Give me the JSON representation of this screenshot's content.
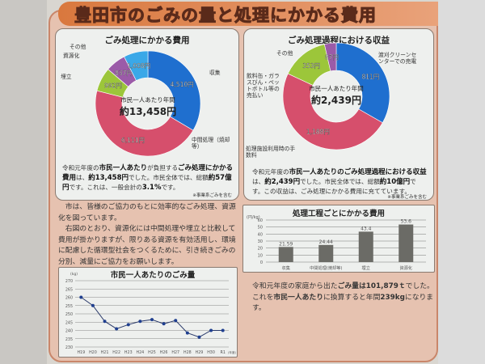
{
  "title": "豊田市のごみの量と処理にかかる費用",
  "cost_pie": {
    "title": "ごみ処理にかかる費用",
    "center_label": "市民一人あたり年間",
    "center_value": "約13,458円",
    "slices": [
      {
        "label": "収集",
        "value": 4510,
        "text": "4,510円",
        "color": "#1f6fcf"
      },
      {
        "label": "中間処理（焼却等）",
        "value": 6111,
        "text": "6,111円",
        "color": "#d64f6c"
      },
      {
        "label": "埋立",
        "value": 992,
        "text": "992円",
        "color": "#9cc63a"
      },
      {
        "label": "資源化",
        "value": 837,
        "text": "837円",
        "color": "#9b5ba8"
      },
      {
        "label": "その他",
        "value": 1008,
        "text": "1,008円",
        "color": "#3aa8e8"
      }
    ],
    "note": [
      "令和元年度の",
      "市民一人あたり",
      "が負担する",
      "ごみ処理にかかる費用",
      "は、",
      "約13,458円",
      "でした。市民全体では、総額",
      "約57億円",
      "です。これは、一般会計の",
      "3.1%",
      "です。"
    ],
    "footnote": "※事業系ごみを含む"
  },
  "revenue_pie": {
    "title": "ごみ処理過程における収益",
    "center_label": "市民一人あたり年間",
    "center_value": "約2,439円",
    "slices": [
      {
        "label": "渡刈クリーンセンターでの売電",
        "value": 811,
        "text": "811円",
        "color": "#1f6fcf"
      },
      {
        "label": "処理施設利用時の手数料",
        "value": 1188,
        "text": "1,188円",
        "color": "#d64f6c"
      },
      {
        "label": "飲料缶・ガラスびん・ペットボトル等の売払い",
        "value": 353,
        "text": "353円",
        "color": "#9cc63a"
      },
      {
        "label": "その他",
        "value": 87,
        "text": "87円",
        "color": "#9b5ba8"
      }
    ],
    "note": [
      "令和元年度の",
      "市民一人あたりのごみ処理過程における収益",
      "は、",
      "約2,439円",
      "でした。市民全体では、総額",
      "約10億円",
      "です。この収益は、ごみ処理にかかる費用に充てています。"
    ],
    "footnote": "※事業系ごみを含む"
  },
  "body_text": [
    "　市は、皆様のご協力のもとに効率的なごみ処理、資源化を図っています。",
    "　右図のとおり、資源化には中間処理や埋立と比較して費用が掛かりますが、限りある資源を有効活用し、環境に配慮した循環型社会をつくるために、引き続きごみの分別、減量にご協力をお願いします。"
  ],
  "amount_text": [
    "令和元年度の家庭から出た",
    "ごみ量は101,879ｔ",
    "でした。これを",
    "市民一人あたり",
    "に換算すると年間",
    "239kg",
    "になります。"
  ],
  "chart_data": [
    {
      "type": "pie",
      "title": "ごみ処理にかかる費用",
      "categories": [
        "収集",
        "中間処理（焼却等）",
        "埋立",
        "資源化",
        "その他"
      ],
      "values": [
        4510,
        6111,
        992,
        837,
        1008
      ],
      "unit": "円"
    },
    {
      "type": "pie",
      "title": "ごみ処理過程における収益",
      "categories": [
        "渡刈クリーンセンターでの売電",
        "処理施設利用時の手数料",
        "飲料缶・ガラスびん・ペットボトル等の売払い",
        "その他"
      ],
      "values": [
        811,
        1188,
        353,
        87
      ],
      "unit": "円"
    },
    {
      "type": "bar",
      "title": "処理工程ごとにかかる費用",
      "ylabel": "(円/kg)",
      "categories": [
        "収集",
        "中間処理(焼却等)",
        "埋立",
        "資源化"
      ],
      "values": [
        21.59,
        24.44,
        43.4,
        53.6
      ],
      "value_labels": [
        "21.59",
        "24.44",
        "43.4",
        "53.6"
      ],
      "ylim": [
        0,
        60
      ],
      "yticks": [
        0,
        10,
        20,
        30,
        40,
        50,
        60
      ],
      "grid": true,
      "color": "#6b6b66"
    },
    {
      "type": "line",
      "title": "市民一人あたりのごみ量",
      "ylabel": "(kg)",
      "xlabel": "(年度)",
      "categories": [
        "H19",
        "H20",
        "H21",
        "H22",
        "H23",
        "H24",
        "H25",
        "H26",
        "H27",
        "H28",
        "H29",
        "H30",
        "R1"
      ],
      "values": [
        260,
        255,
        245.5,
        241,
        243.5,
        245.5,
        246.5,
        244,
        246,
        238.5,
        236,
        240,
        240
      ],
      "ylim": [
        230,
        270
      ],
      "yticks": [
        230,
        235,
        240,
        245,
        250,
        255,
        260,
        265,
        270
      ],
      "grid": true,
      "color": "#1f3f8f"
    }
  ]
}
